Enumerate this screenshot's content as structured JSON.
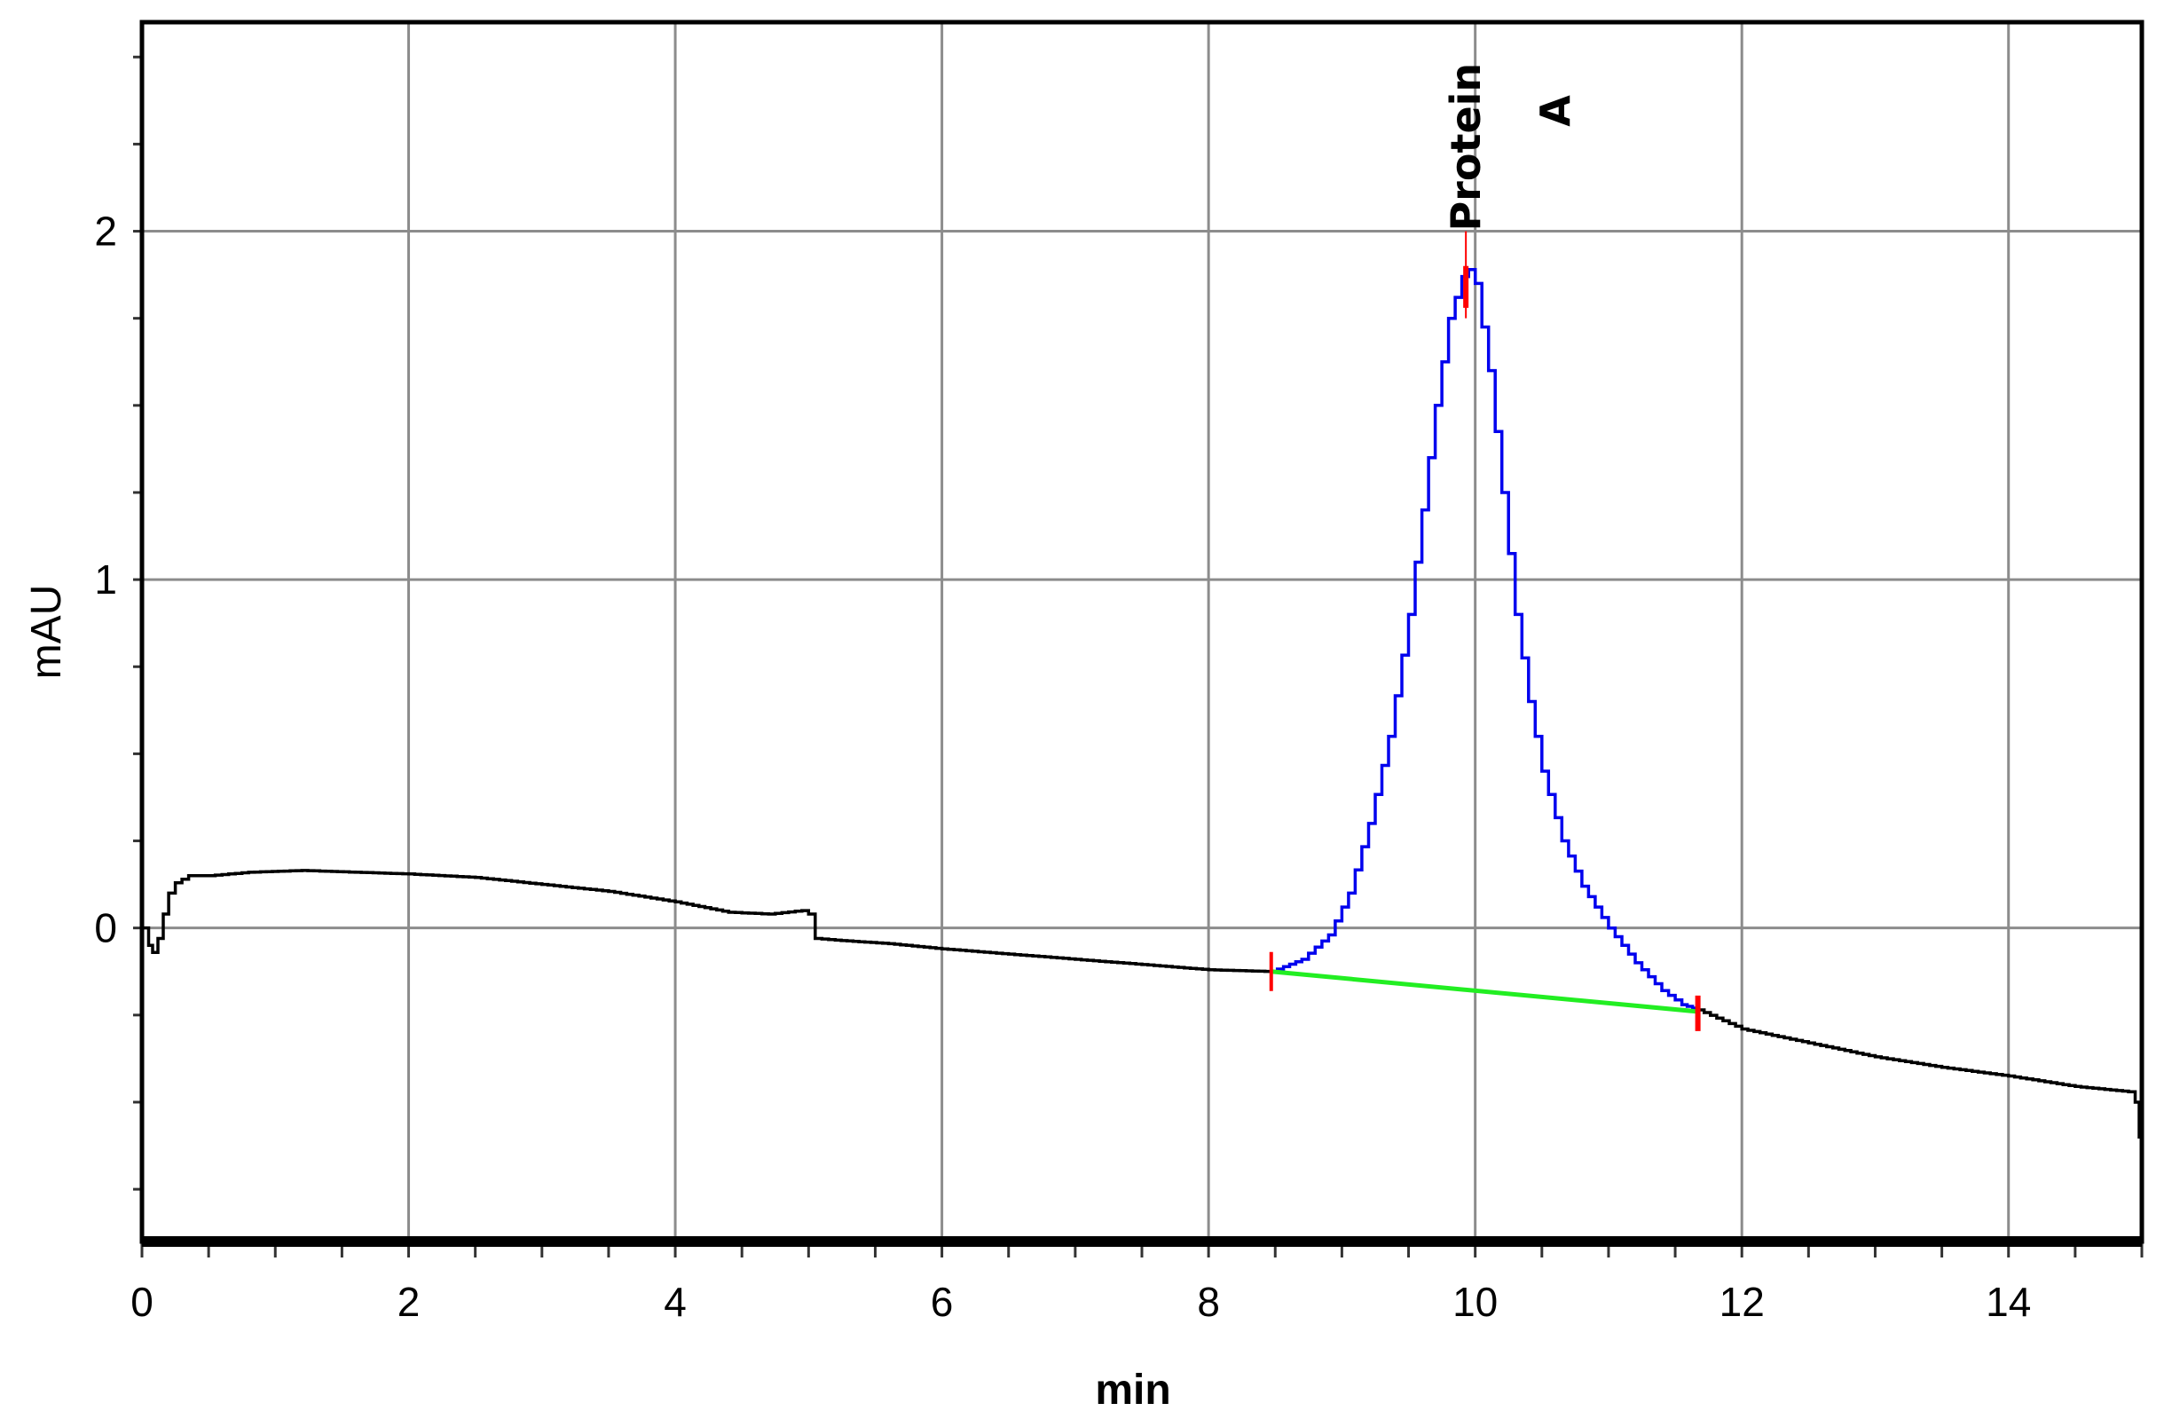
{
  "chart_data": {
    "type": "line",
    "title": "",
    "xlabel": "min",
    "ylabel": "mAU",
    "xlim": [
      0,
      15
    ],
    "ylim": [
      -0.9,
      2.6
    ],
    "x_ticks": [
      0,
      2,
      4,
      6,
      8,
      10,
      12,
      14
    ],
    "x_tick_labels": [
      "0",
      "2",
      "4",
      "6",
      "8",
      "10",
      "12",
      "14"
    ],
    "y_ticks": [
      0,
      1,
      2
    ],
    "y_tick_labels": [
      "0",
      "1",
      "2"
    ],
    "grid": true,
    "series": [
      {
        "name": "",
        "color": "#000000",
        "points": [
          [
            0.0,
            0.0
          ],
          [
            0.05,
            -0.05
          ],
          [
            0.08,
            -0.07
          ],
          [
            0.12,
            -0.03
          ],
          [
            0.16,
            0.04
          ],
          [
            0.2,
            0.1
          ],
          [
            0.25,
            0.13
          ],
          [
            0.35,
            0.15
          ],
          [
            0.5,
            0.15
          ],
          [
            0.8,
            0.16
          ],
          [
            1.2,
            0.165
          ],
          [
            1.6,
            0.16
          ],
          [
            2.0,
            0.155
          ],
          [
            2.5,
            0.145
          ],
          [
            3.0,
            0.125
          ],
          [
            3.5,
            0.105
          ],
          [
            4.0,
            0.075
          ],
          [
            4.4,
            0.045
          ],
          [
            4.7,
            0.04
          ],
          [
            4.95,
            0.05
          ],
          [
            5.0,
            0.04
          ],
          [
            5.05,
            -0.03
          ],
          [
            5.2,
            -0.035
          ],
          [
            5.6,
            -0.045
          ],
          [
            6.0,
            -0.06
          ],
          [
            6.5,
            -0.075
          ],
          [
            7.0,
            -0.09
          ],
          [
            7.5,
            -0.105
          ],
          [
            8.0,
            -0.12
          ],
          [
            8.47,
            -0.125
          ]
        ]
      },
      {
        "name": "",
        "color": "#0000ee",
        "points": [
          [
            8.47,
            -0.125
          ],
          [
            8.7,
            -0.09
          ],
          [
            8.9,
            -0.02
          ],
          [
            9.05,
            0.1
          ],
          [
            9.2,
            0.3
          ],
          [
            9.35,
            0.55
          ],
          [
            9.5,
            0.9
          ],
          [
            9.6,
            1.2
          ],
          [
            9.7,
            1.5
          ],
          [
            9.8,
            1.75
          ],
          [
            9.9,
            1.87
          ],
          [
            9.95,
            1.89
          ],
          [
            10.0,
            1.85
          ],
          [
            10.1,
            1.6
          ],
          [
            10.2,
            1.25
          ],
          [
            10.3,
            0.9
          ],
          [
            10.4,
            0.65
          ],
          [
            10.5,
            0.45
          ],
          [
            10.65,
            0.25
          ],
          [
            10.8,
            0.12
          ],
          [
            11.0,
            0.0
          ],
          [
            11.2,
            -0.1
          ],
          [
            11.4,
            -0.18
          ],
          [
            11.55,
            -0.22
          ],
          [
            11.67,
            -0.235
          ]
        ]
      },
      {
        "name": "",
        "color": "#000000",
        "points": [
          [
            11.67,
            -0.235
          ],
          [
            12.0,
            -0.29
          ],
          [
            12.5,
            -0.33
          ],
          [
            13.0,
            -0.37
          ],
          [
            13.5,
            -0.4
          ],
          [
            14.0,
            -0.425
          ],
          [
            14.5,
            -0.455
          ],
          [
            14.9,
            -0.47
          ],
          [
            14.95,
            -0.5
          ],
          [
            14.98,
            -0.6
          ],
          [
            15.0,
            -0.66
          ]
        ]
      }
    ],
    "baseline": {
      "color": "#22ee22",
      "points": [
        [
          8.47,
          -0.125
        ],
        [
          11.67,
          -0.24
        ]
      ]
    },
    "peak_markers": {
      "color": "#ff0000",
      "apex_x": 9.93,
      "start_x": 8.47,
      "end_x": 11.67
    },
    "annotations": [
      {
        "text": "Protein",
        "x": 9.93,
        "y": 2.0,
        "rotation": -90
      },
      {
        "text": "A",
        "x": 10.6,
        "y": 2.3,
        "rotation": -90
      }
    ]
  }
}
